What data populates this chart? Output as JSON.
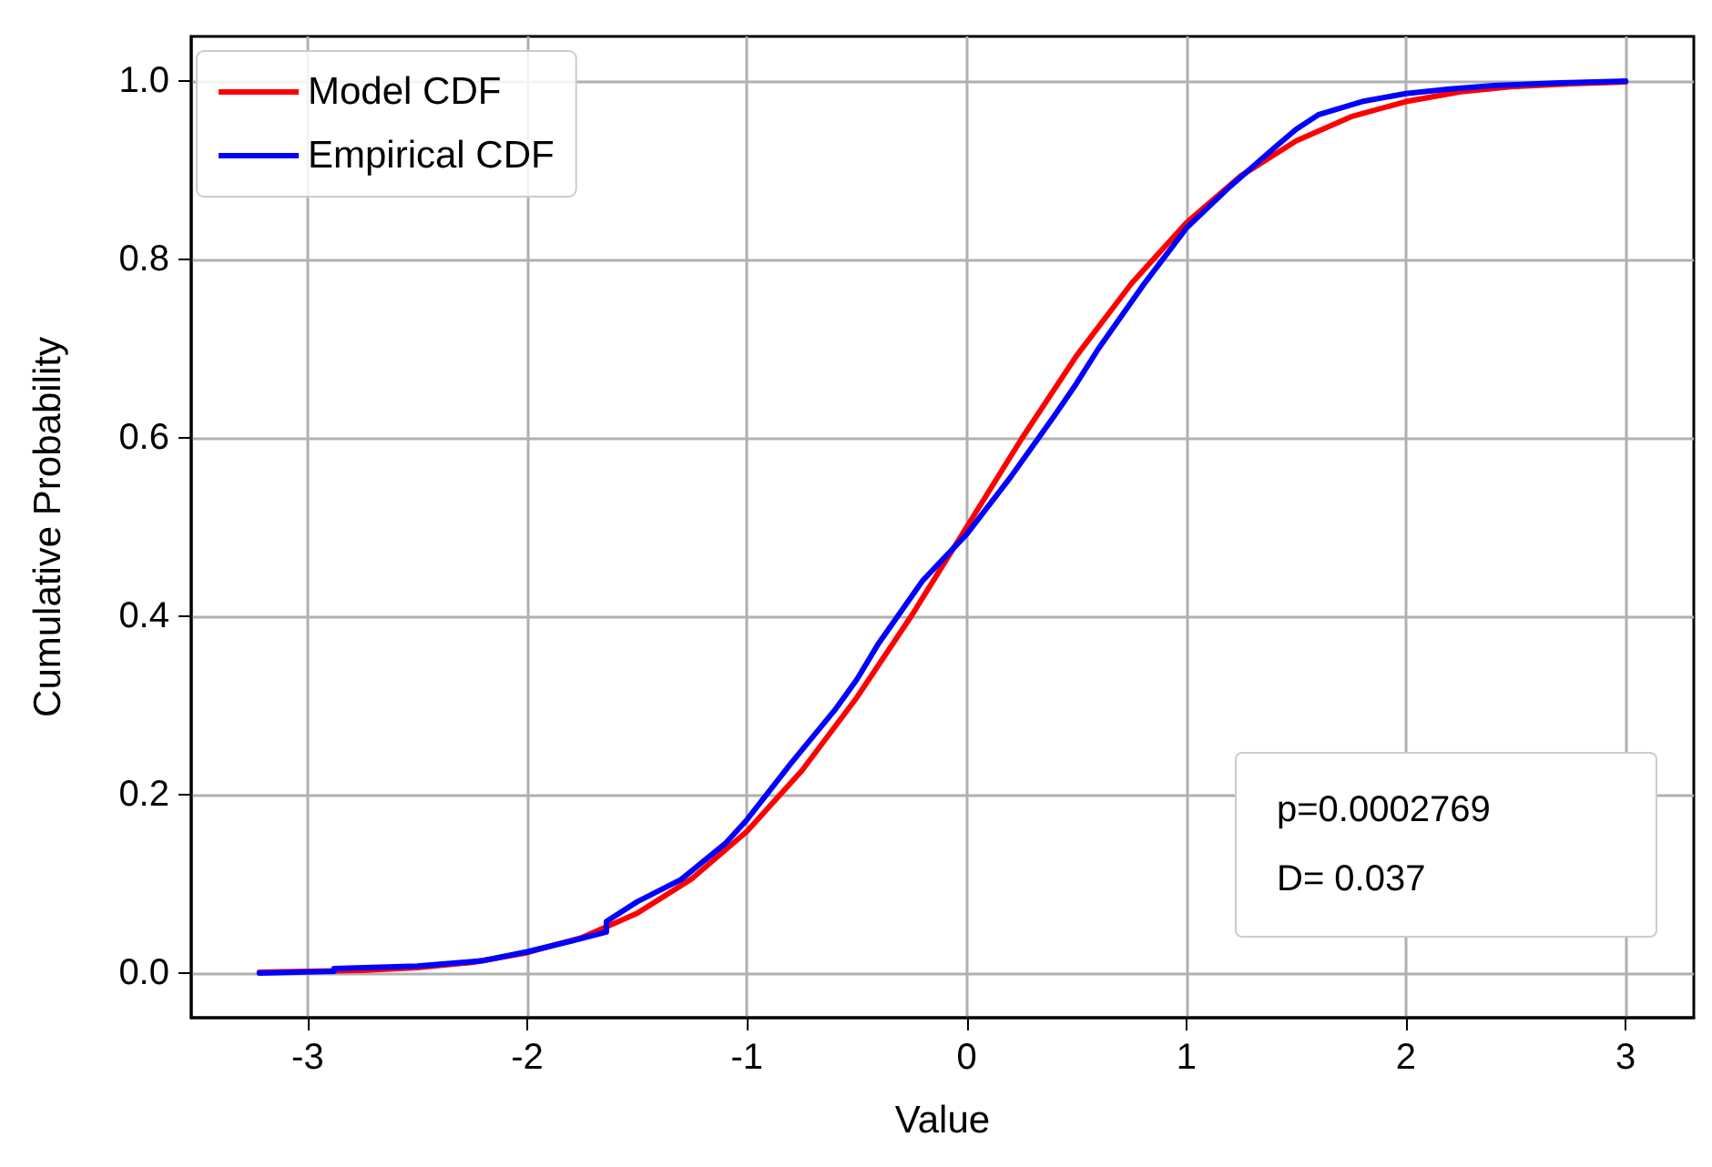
{
  "chart_data": {
    "type": "line",
    "xlabel": "Value",
    "ylabel": "Cumulative Probability",
    "xlim": [
      -3.53,
      3.31
    ],
    "ylim": [
      -0.05,
      1.05
    ],
    "xticks": [
      -3,
      -2,
      -1,
      0,
      1,
      2,
      3
    ],
    "yticks": [
      {
        "value": 0,
        "label": "0.0"
      },
      {
        "value": 0.2,
        "label": "0.2"
      },
      {
        "value": 0.4,
        "label": "0.4"
      },
      {
        "value": 0.6,
        "label": "0.6"
      },
      {
        "value": 0.8,
        "label": "0.8"
      },
      {
        "value": 1,
        "label": "1.0"
      }
    ],
    "grid": true,
    "legend": "top left",
    "series": [
      {
        "name": "Model CDF",
        "color": "#ff0000",
        "x": [
          -3.22,
          -2.75,
          -2.5,
          -2.25,
          -2,
          -1.75,
          -1.5,
          -1.25,
          -1,
          -0.75,
          -0.5,
          -0.25,
          0,
          0.25,
          0.5,
          0.75,
          1,
          1.25,
          1.5,
          1.75,
          2,
          2.25,
          2.5,
          2.75,
          3
        ],
        "values": [
          0.001,
          0.003,
          0.006,
          0.012,
          0.023,
          0.04,
          0.067,
          0.106,
          0.159,
          0.227,
          0.309,
          0.401,
          0.5,
          0.599,
          0.692,
          0.773,
          0.841,
          0.894,
          0.933,
          0.96,
          0.977,
          0.988,
          0.994,
          0.997,
          0.999
        ]
      },
      {
        "name": "Empirical CDF",
        "color": "#0000ff",
        "x": [
          -3.22,
          -2.88,
          -2.88,
          -2.5,
          -2.2,
          -2,
          -1.8,
          -1.64,
          -1.64,
          -1.5,
          -1.3,
          -1.1,
          -1,
          -0.8,
          -0.6,
          -0.5,
          -0.4,
          -0.2,
          0,
          0.2,
          0.4,
          0.5,
          0.6,
          0.8,
          1,
          1.2,
          1.4,
          1.5,
          1.6,
          1.8,
          2,
          2.2,
          2.4,
          2.7,
          3
        ],
        "values": [
          0.0,
          0.002,
          0.005,
          0.008,
          0.014,
          0.024,
          0.036,
          0.046,
          0.058,
          0.08,
          0.105,
          0.145,
          0.172,
          0.235,
          0.295,
          0.329,
          0.37,
          0.44,
          0.492,
          0.556,
          0.625,
          0.661,
          0.7,
          0.77,
          0.835,
          0.882,
          0.925,
          0.946,
          0.962,
          0.977,
          0.986,
          0.991,
          0.995,
          0.998,
          1.0
        ]
      }
    ],
    "annotations": [
      "p=0.0002769",
      "D= 0.037"
    ]
  }
}
